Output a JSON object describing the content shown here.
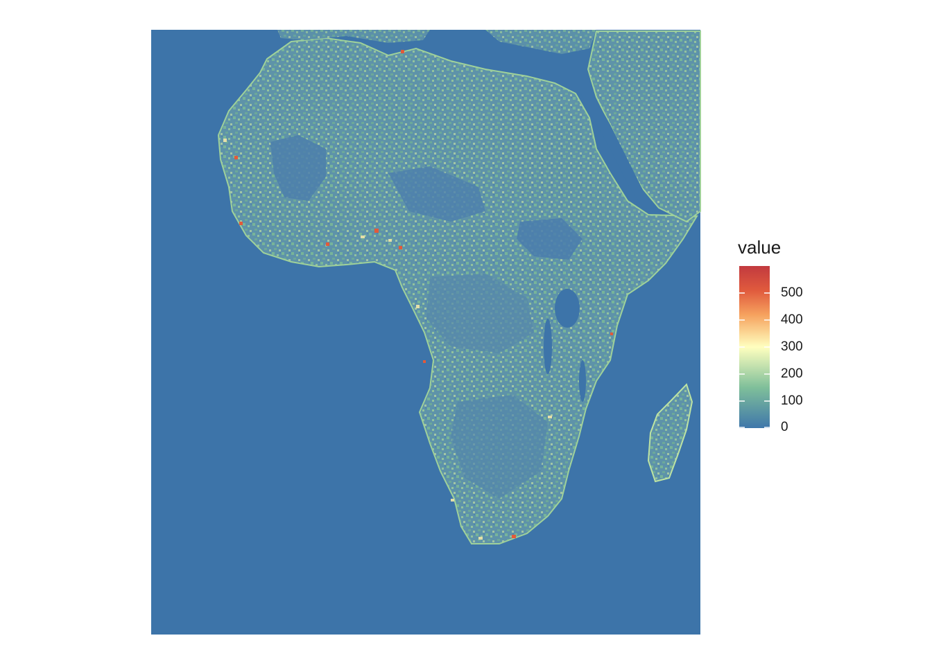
{
  "legend": {
    "title": "value",
    "ticks": [
      {
        "label": "0",
        "value": 0
      },
      {
        "label": "100",
        "value": 100
      },
      {
        "label": "200",
        "value": 200
      },
      {
        "label": "300",
        "value": 300
      },
      {
        "label": "400",
        "value": 400
      },
      {
        "label": "500",
        "value": 500
      }
    ],
    "range": [
      0,
      600
    ],
    "palette": [
      "#3f77aa",
      "#7fbf9a",
      "#ffffbf",
      "#f6a15e",
      "#e05a3d",
      "#c23a3f"
    ]
  },
  "colors": {
    "background": "#ffffff",
    "ocean": "#3d74a9",
    "land_base": "#5a8fab",
    "land_green": "#7ab98f",
    "land_yellow": "#d9eca0",
    "hotspot": "#e25a3a"
  }
}
